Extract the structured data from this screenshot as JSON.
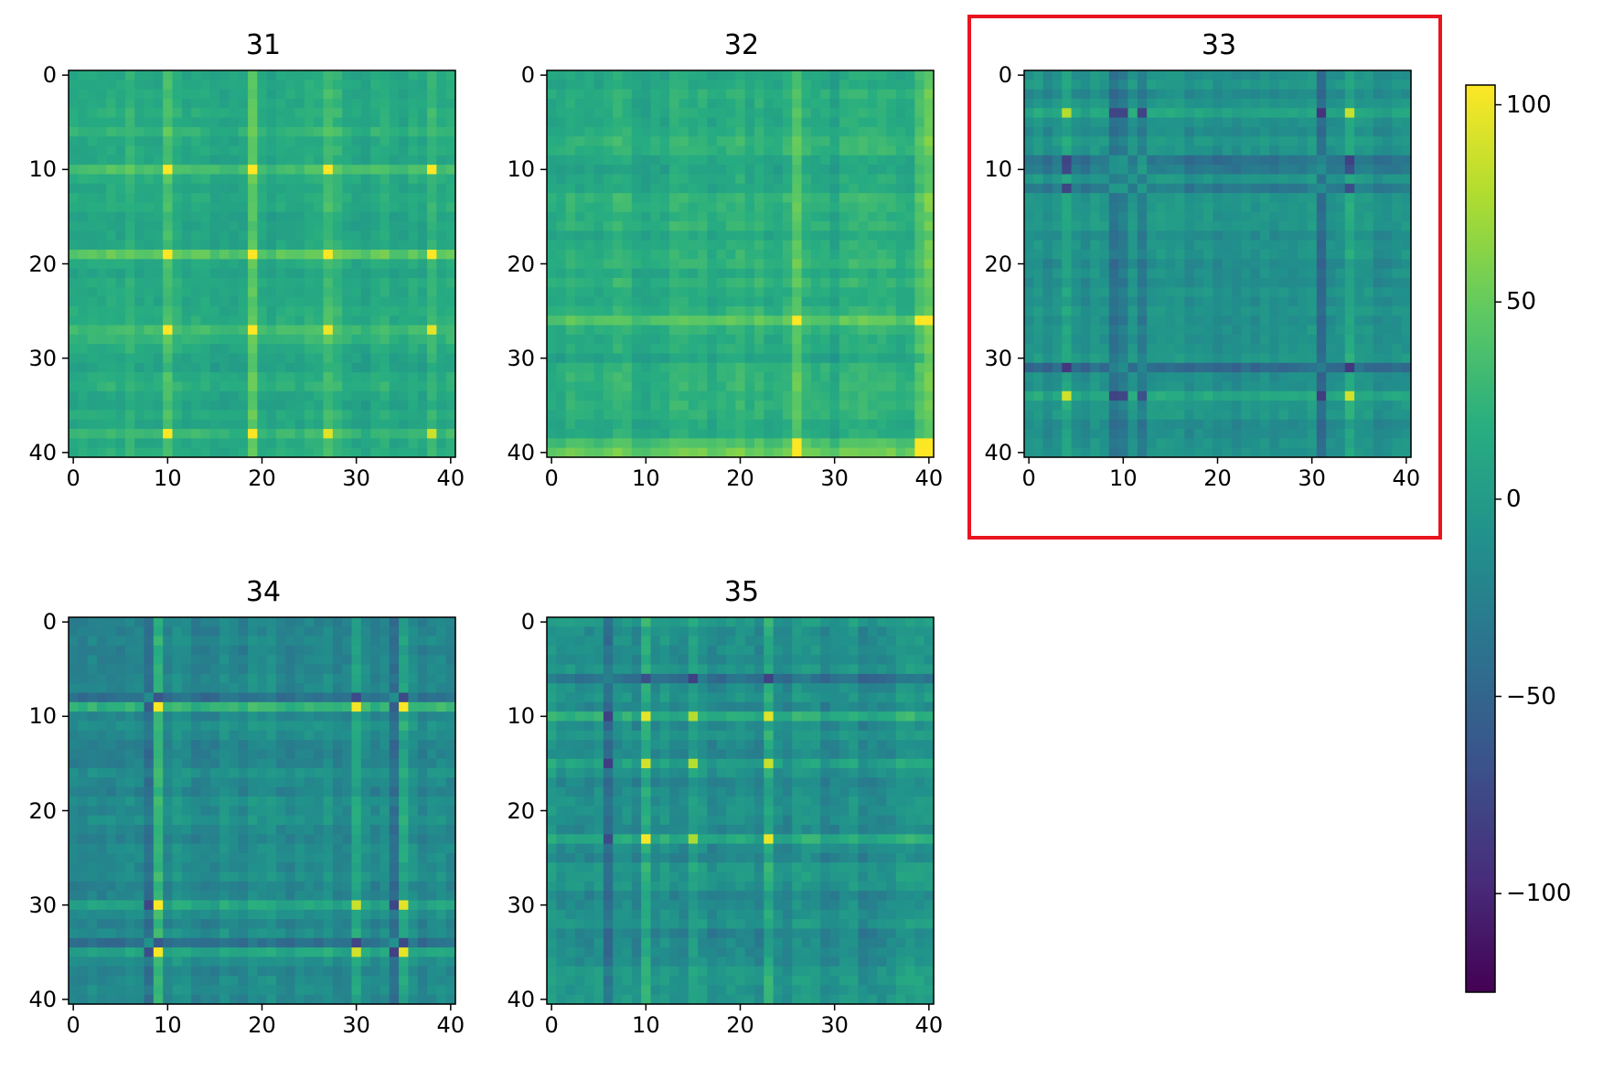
{
  "chart_data": [
    {
      "type": "heatmap",
      "title": "31",
      "xticks": [
        "0",
        "10",
        "20",
        "30",
        "40"
      ],
      "yticks": [
        "0",
        "10",
        "20",
        "30",
        "40"
      ],
      "xlim": [
        0,
        40
      ],
      "ylim": [
        40,
        0
      ],
      "grid_size": 41
    },
    {
      "type": "heatmap",
      "title": "32",
      "xticks": [
        "0",
        "10",
        "20",
        "30",
        "40"
      ],
      "yticks": [
        "0",
        "10",
        "20",
        "30",
        "40"
      ],
      "xlim": [
        0,
        40
      ],
      "ylim": [
        40,
        0
      ],
      "grid_size": 41
    },
    {
      "type": "heatmap",
      "title": "33",
      "xticks": [
        "0",
        "10",
        "20",
        "30",
        "40"
      ],
      "yticks": [
        "0",
        "10",
        "20",
        "30",
        "40"
      ],
      "xlim": [
        0,
        40
      ],
      "ylim": [
        40,
        0
      ],
      "grid_size": 41,
      "highlighted": true
    },
    {
      "type": "heatmap",
      "title": "34",
      "xticks": [
        "0",
        "10",
        "20",
        "30",
        "40"
      ],
      "yticks": [
        "0",
        "10",
        "20",
        "30",
        "40"
      ],
      "xlim": [
        0,
        40
      ],
      "ylim": [
        40,
        0
      ],
      "grid_size": 41
    },
    {
      "type": "heatmap",
      "title": "35",
      "xticks": [
        "0",
        "10",
        "20",
        "30",
        "40"
      ],
      "yticks": [
        "0",
        "10",
        "20",
        "30",
        "40"
      ],
      "xlim": [
        0,
        40
      ],
      "ylim": [
        40,
        0
      ],
      "grid_size": 41
    }
  ],
  "colorbar": {
    "colormap": "viridis",
    "range": [
      -125,
      105
    ],
    "ticks": [
      100,
      50,
      0,
      -50,
      -100
    ],
    "tick_labels": [
      "100",
      "50",
      "0",
      "−50",
      "−100"
    ]
  },
  "colors": {
    "highlight": "#e8141e"
  }
}
